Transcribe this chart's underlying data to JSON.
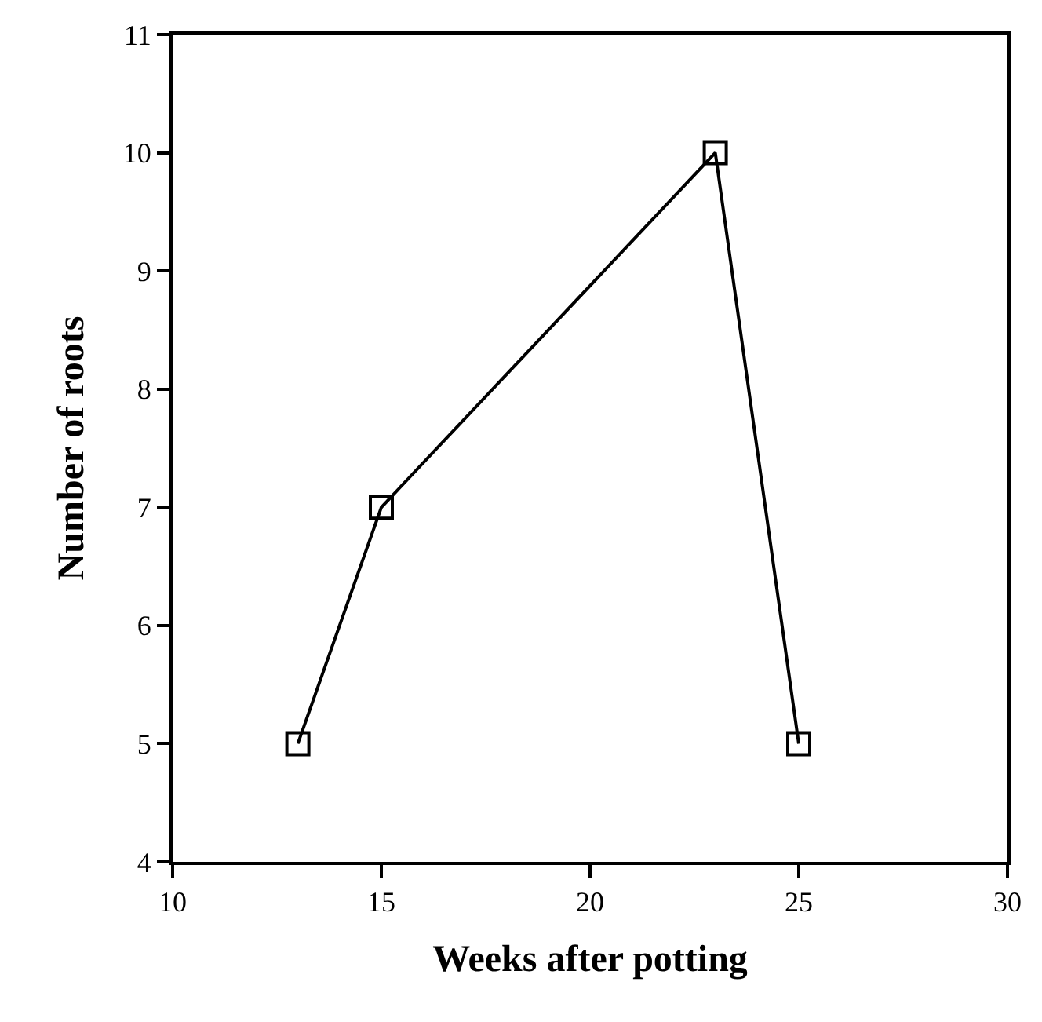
{
  "chart_data": {
    "type": "line",
    "xlabel": "Weeks after potting",
    "ylabel": "Number of roots",
    "x": [
      13,
      15,
      23,
      25
    ],
    "series": [
      {
        "color": "#000000",
        "values": [
          5,
          7,
          10,
          5
        ]
      }
    ],
    "xlim": [
      10,
      30
    ],
    "xticks": [
      10,
      15,
      20,
      25,
      30
    ],
    "ylim": [
      4,
      11
    ],
    "yticks": [
      4,
      5,
      6,
      7,
      8,
      9,
      10,
      11
    ],
    "marker": "square",
    "line_style": "solid"
  }
}
